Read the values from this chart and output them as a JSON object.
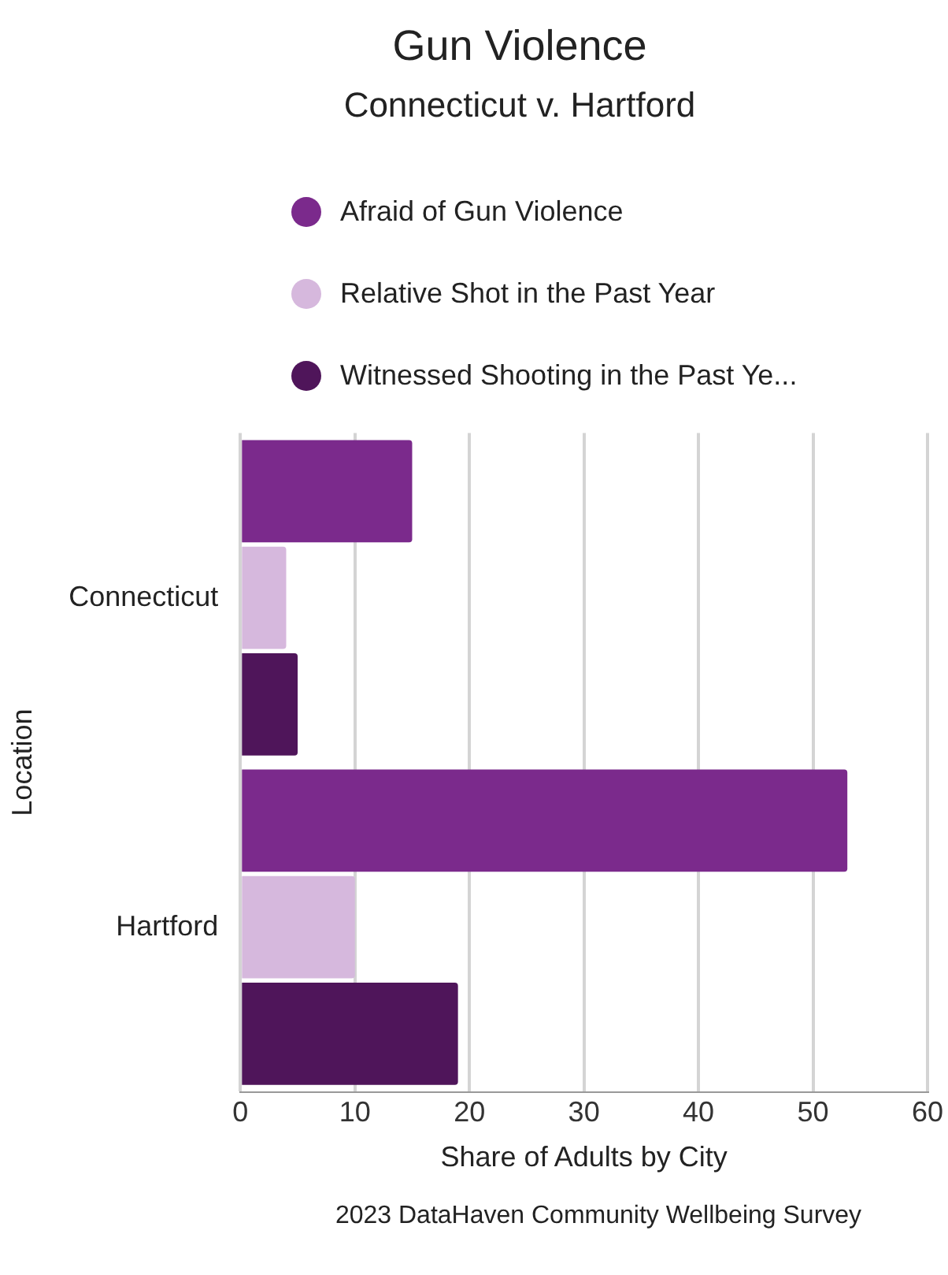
{
  "chart_data": {
    "type": "bar",
    "orientation": "horizontal",
    "title": "Gun Violence",
    "subtitle": "Connecticut v. Hartford",
    "xlabel": "Share of Adults by City",
    "ylabel": "Location",
    "annotations": [
      "2023 DataHaven Community Wellbeing Survey"
    ],
    "categories": [
      "Connecticut",
      "Hartford"
    ],
    "series": [
      {
        "name": "Afraid of Gun Violence",
        "color": "#7b2a8c",
        "values": [
          15,
          53
        ]
      },
      {
        "name": "Relative Shot in the Past Year",
        "color": "#d6b8dd",
        "values": [
          4,
          10
        ]
      },
      {
        "name": "Witnessed Shooting in the Past Ye...",
        "color": "#4f155a",
        "values": [
          5,
          19
        ]
      }
    ],
    "xlim": [
      0,
      60
    ],
    "xticks": [
      0,
      10,
      20,
      30,
      40,
      50,
      60
    ],
    "grid": "x",
    "legend": "top"
  }
}
